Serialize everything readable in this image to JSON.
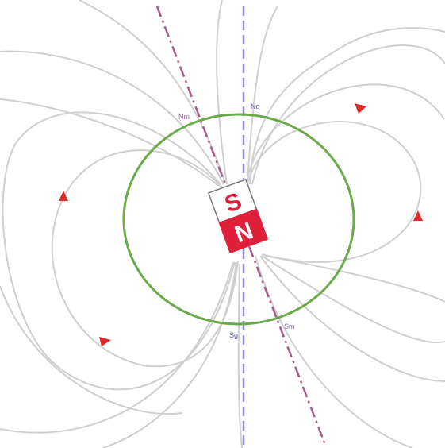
{
  "diagram": {
    "labels": {
      "geo_north": "Ng",
      "geo_south": "Sg",
      "mag_north": "Nm",
      "mag_south": "Sm",
      "magnet_south": "S",
      "magnet_north": "N"
    },
    "colors": {
      "background": "#ffffff",
      "field_lines": "#cfcfcf",
      "earth_circle": "#6aaa4a",
      "geographic_axis": "#8e8edf",
      "magnetic_axis": "#a85a8a",
      "magnet_north_fill": "#e0203a",
      "magnet_south_fill": "#ffffff",
      "magnet_south_text": "#e0203a",
      "arrow": "#dd2b2b",
      "label_geo": "#5b5bb8",
      "label_mag": "#9a6a9a"
    }
  }
}
